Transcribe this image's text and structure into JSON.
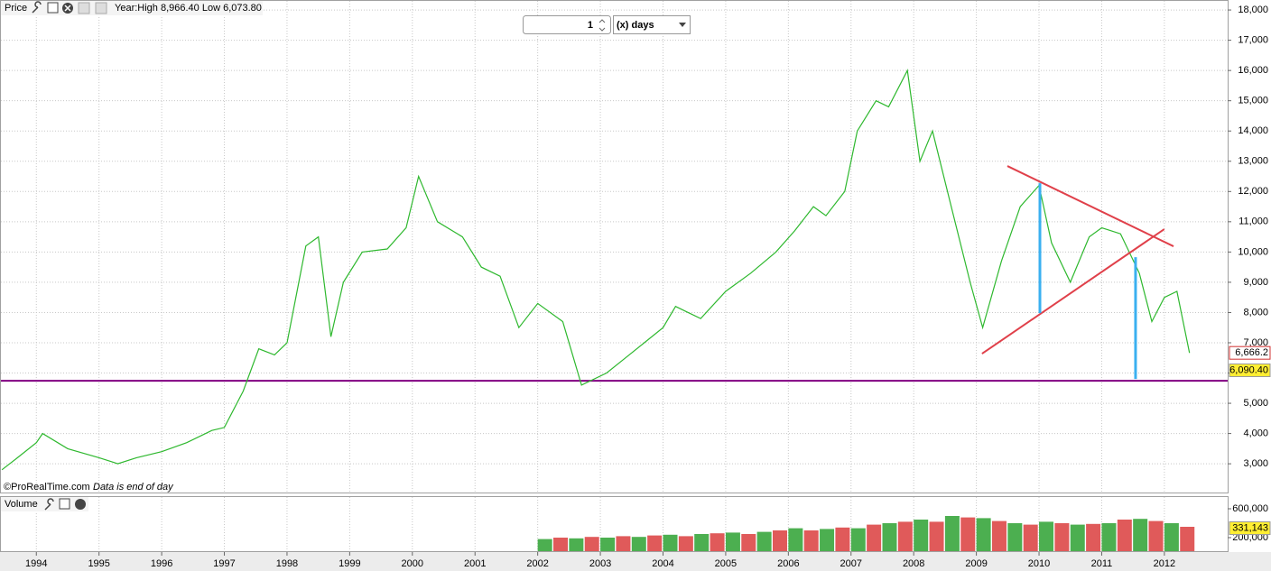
{
  "toolbar": {
    "panel": "Price",
    "info": "Year:High 8,966.40 Low 6,073.80",
    "period_value": "1",
    "period_unit": "(x) days",
    "watermark": "©ProRealTime.com",
    "note": "Data is end of day",
    "volume_panel": "Volume"
  },
  "chart_data": [
    {
      "type": "line",
      "color": "#2eb82e",
      "grid": true,
      "xlim": [
        1993.42,
        2013.01
      ],
      "ylim": [
        2050,
        18330
      ],
      "xticks": [
        1994,
        1995,
        1996,
        1997,
        1998,
        1999,
        2000,
        2001,
        2002,
        2003,
        2004,
        2005,
        2006,
        2007,
        2008,
        2009,
        2010,
        2011,
        2012
      ],
      "yticks": [
        {
          "value": 3000,
          "label": "3,000"
        },
        {
          "value": 4000,
          "label": "4,000"
        },
        {
          "value": 5000,
          "label": "5,000"
        },
        {
          "value": 6000,
          "label": "6,000"
        },
        {
          "value": 7000,
          "label": "7,000"
        },
        {
          "value": 8000,
          "label": "8,000"
        },
        {
          "value": 9000,
          "label": "9,000"
        },
        {
          "value": 10000,
          "label": "10,000"
        },
        {
          "value": 11000,
          "label": "11,000"
        },
        {
          "value": 12000,
          "label": "12,000"
        },
        {
          "value": 13000,
          "label": "13,000"
        },
        {
          "value": 14000,
          "label": "14,000"
        },
        {
          "value": 15000,
          "label": "15,000"
        },
        {
          "value": 16000,
          "label": "16,000"
        },
        {
          "value": 17000,
          "label": "17,000"
        },
        {
          "value": 18000,
          "label": "18,000"
        }
      ],
      "x": [
        1993.45,
        1993.7,
        1994.0,
        1994.1,
        1994.5,
        1995.0,
        1995.3,
        1995.6,
        1996.0,
        1996.4,
        1996.8,
        1997.0,
        1997.3,
        1997.55,
        1997.8,
        1998.0,
        1998.3,
        1998.5,
        1998.7,
        1998.9,
        1999.2,
        1999.6,
        1999.9,
        2000.1,
        2000.4,
        2000.8,
        2001.1,
        2001.4,
        2001.7,
        2002.0,
        2002.4,
        2002.7,
        2003.1,
        2003.4,
        2003.7,
        2004.0,
        2004.2,
        2004.6,
        2005.0,
        2005.4,
        2005.8,
        2006.1,
        2006.4,
        2006.6,
        2006.9,
        2007.1,
        2007.4,
        2007.6,
        2007.9,
        2008.1,
        2008.3,
        2008.6,
        2008.9,
        2009.1,
        2009.4,
        2009.7,
        2010.0,
        2010.2,
        2010.5,
        2010.8,
        2011.0,
        2011.3,
        2011.6,
        2011.8,
        2012.0,
        2012.2,
        2012.4
      ],
      "values": [
        2800,
        3200,
        3700,
        4000,
        3500,
        3200,
        3000,
        3200,
        3400,
        3700,
        4100,
        4200,
        5400,
        6800,
        6600,
        7000,
        10200,
        10500,
        7200,
        9000,
        10000,
        10100,
        10800,
        12500,
        11000,
        10500,
        9500,
        9200,
        7500,
        8300,
        7700,
        5600,
        6000,
        6500,
        7000,
        7500,
        8200,
        7800,
        8700,
        9300,
        10000,
        10700,
        11500,
        11200,
        12000,
        14000,
        15000,
        14800,
        16000,
        13000,
        14000,
        11500,
        9000,
        7500,
        9700,
        11500,
        12200,
        10300,
        9000,
        10500,
        10800,
        10600,
        9300,
        7700,
        8500,
        8700,
        6666.2
      ],
      "last_labels": [
        {
          "value": 6666.2,
          "label": "6,666.2"
        },
        {
          "value": 6090.4,
          "label": "6,090.40"
        }
      ],
      "hline": {
        "value": 5744,
        "color": "#800080"
      },
      "lines": [
        {
          "color": "#e0404a",
          "x": [
            2009.495,
            2012.146
          ],
          "y": [
            12842,
            10188
          ]
        },
        {
          "color": "#e0404a",
          "x": [
            2009.09,
            2011.998
          ],
          "y": [
            6639,
            10754
          ]
        },
        {
          "color": "#3ab0f0",
          "x": [
            2010.014,
            2010.014
          ],
          "y": [
            12275,
            7981
          ]
        },
        {
          "color": "#3ab0f0",
          "x": [
            2011.54,
            2011.54
          ],
          "y": [
            9830,
            5803
          ]
        }
      ]
    },
    {
      "type": "bar",
      "colors": [
        "#4caf50",
        "#e05a5a"
      ],
      "ylim": [
        12500,
        762500
      ],
      "yticks": [
        {
          "value": 200000,
          "label": "200,000"
        },
        {
          "value": 600000,
          "label": "600,000"
        }
      ],
      "x": [
        2002.0,
        2002.25,
        2002.5,
        2002.75,
        2003.0,
        2003.25,
        2003.5,
        2003.75,
        2004.0,
        2004.25,
        2004.5,
        2004.75,
        2005.0,
        2005.25,
        2005.5,
        2005.75,
        2006.0,
        2006.25,
        2006.5,
        2006.75,
        2007.0,
        2007.25,
        2007.5,
        2007.75,
        2008.0,
        2008.25,
        2008.5,
        2008.75,
        2009.0,
        2009.25,
        2009.5,
        2009.75,
        2010.0,
        2010.25,
        2010.5,
        2010.75,
        2011.0,
        2011.25,
        2011.5,
        2011.75,
        2012.0,
        2012.25
      ],
      "values": [
        180000,
        200000,
        190000,
        210000,
        200000,
        220000,
        210000,
        230000,
        240000,
        220000,
        250000,
        260000,
        270000,
        250000,
        280000,
        300000,
        330000,
        300000,
        320000,
        340000,
        330000,
        380000,
        400000,
        420000,
        450000,
        420000,
        500000,
        480000,
        470000,
        430000,
        400000,
        380000,
        420000,
        400000,
        380000,
        390000,
        400000,
        450000,
        460000,
        430000,
        400000,
        350000
      ],
      "last_label": {
        "value": 331143,
        "label": "331,143"
      }
    }
  ]
}
